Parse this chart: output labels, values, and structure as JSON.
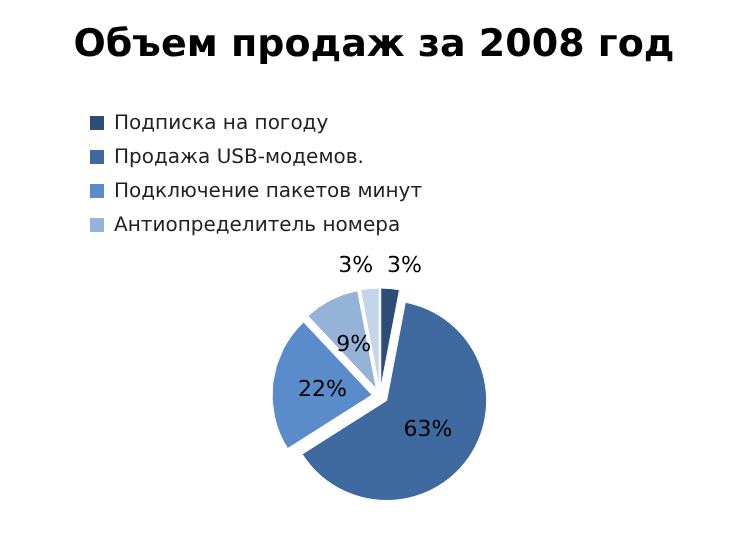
{
  "chart_data": {
    "type": "pie",
    "title": "Объем продаж за 2008 год",
    "categories": [
      "Подписка на погоду",
      "Продажа USB-модемов.",
      "Подключение пакетов минут",
      "Антиопределитель номера",
      null
    ],
    "values": [
      3,
      63,
      22,
      9,
      3
    ],
    "value_labels": [
      "3%",
      "63%",
      "22%",
      "9%",
      "3%"
    ],
    "colors": [
      "#2c4d77",
      "#3e6aa0",
      "#5a8ccb",
      "#95b3d7",
      "#c6d6ea"
    ],
    "legend": "top left"
  }
}
